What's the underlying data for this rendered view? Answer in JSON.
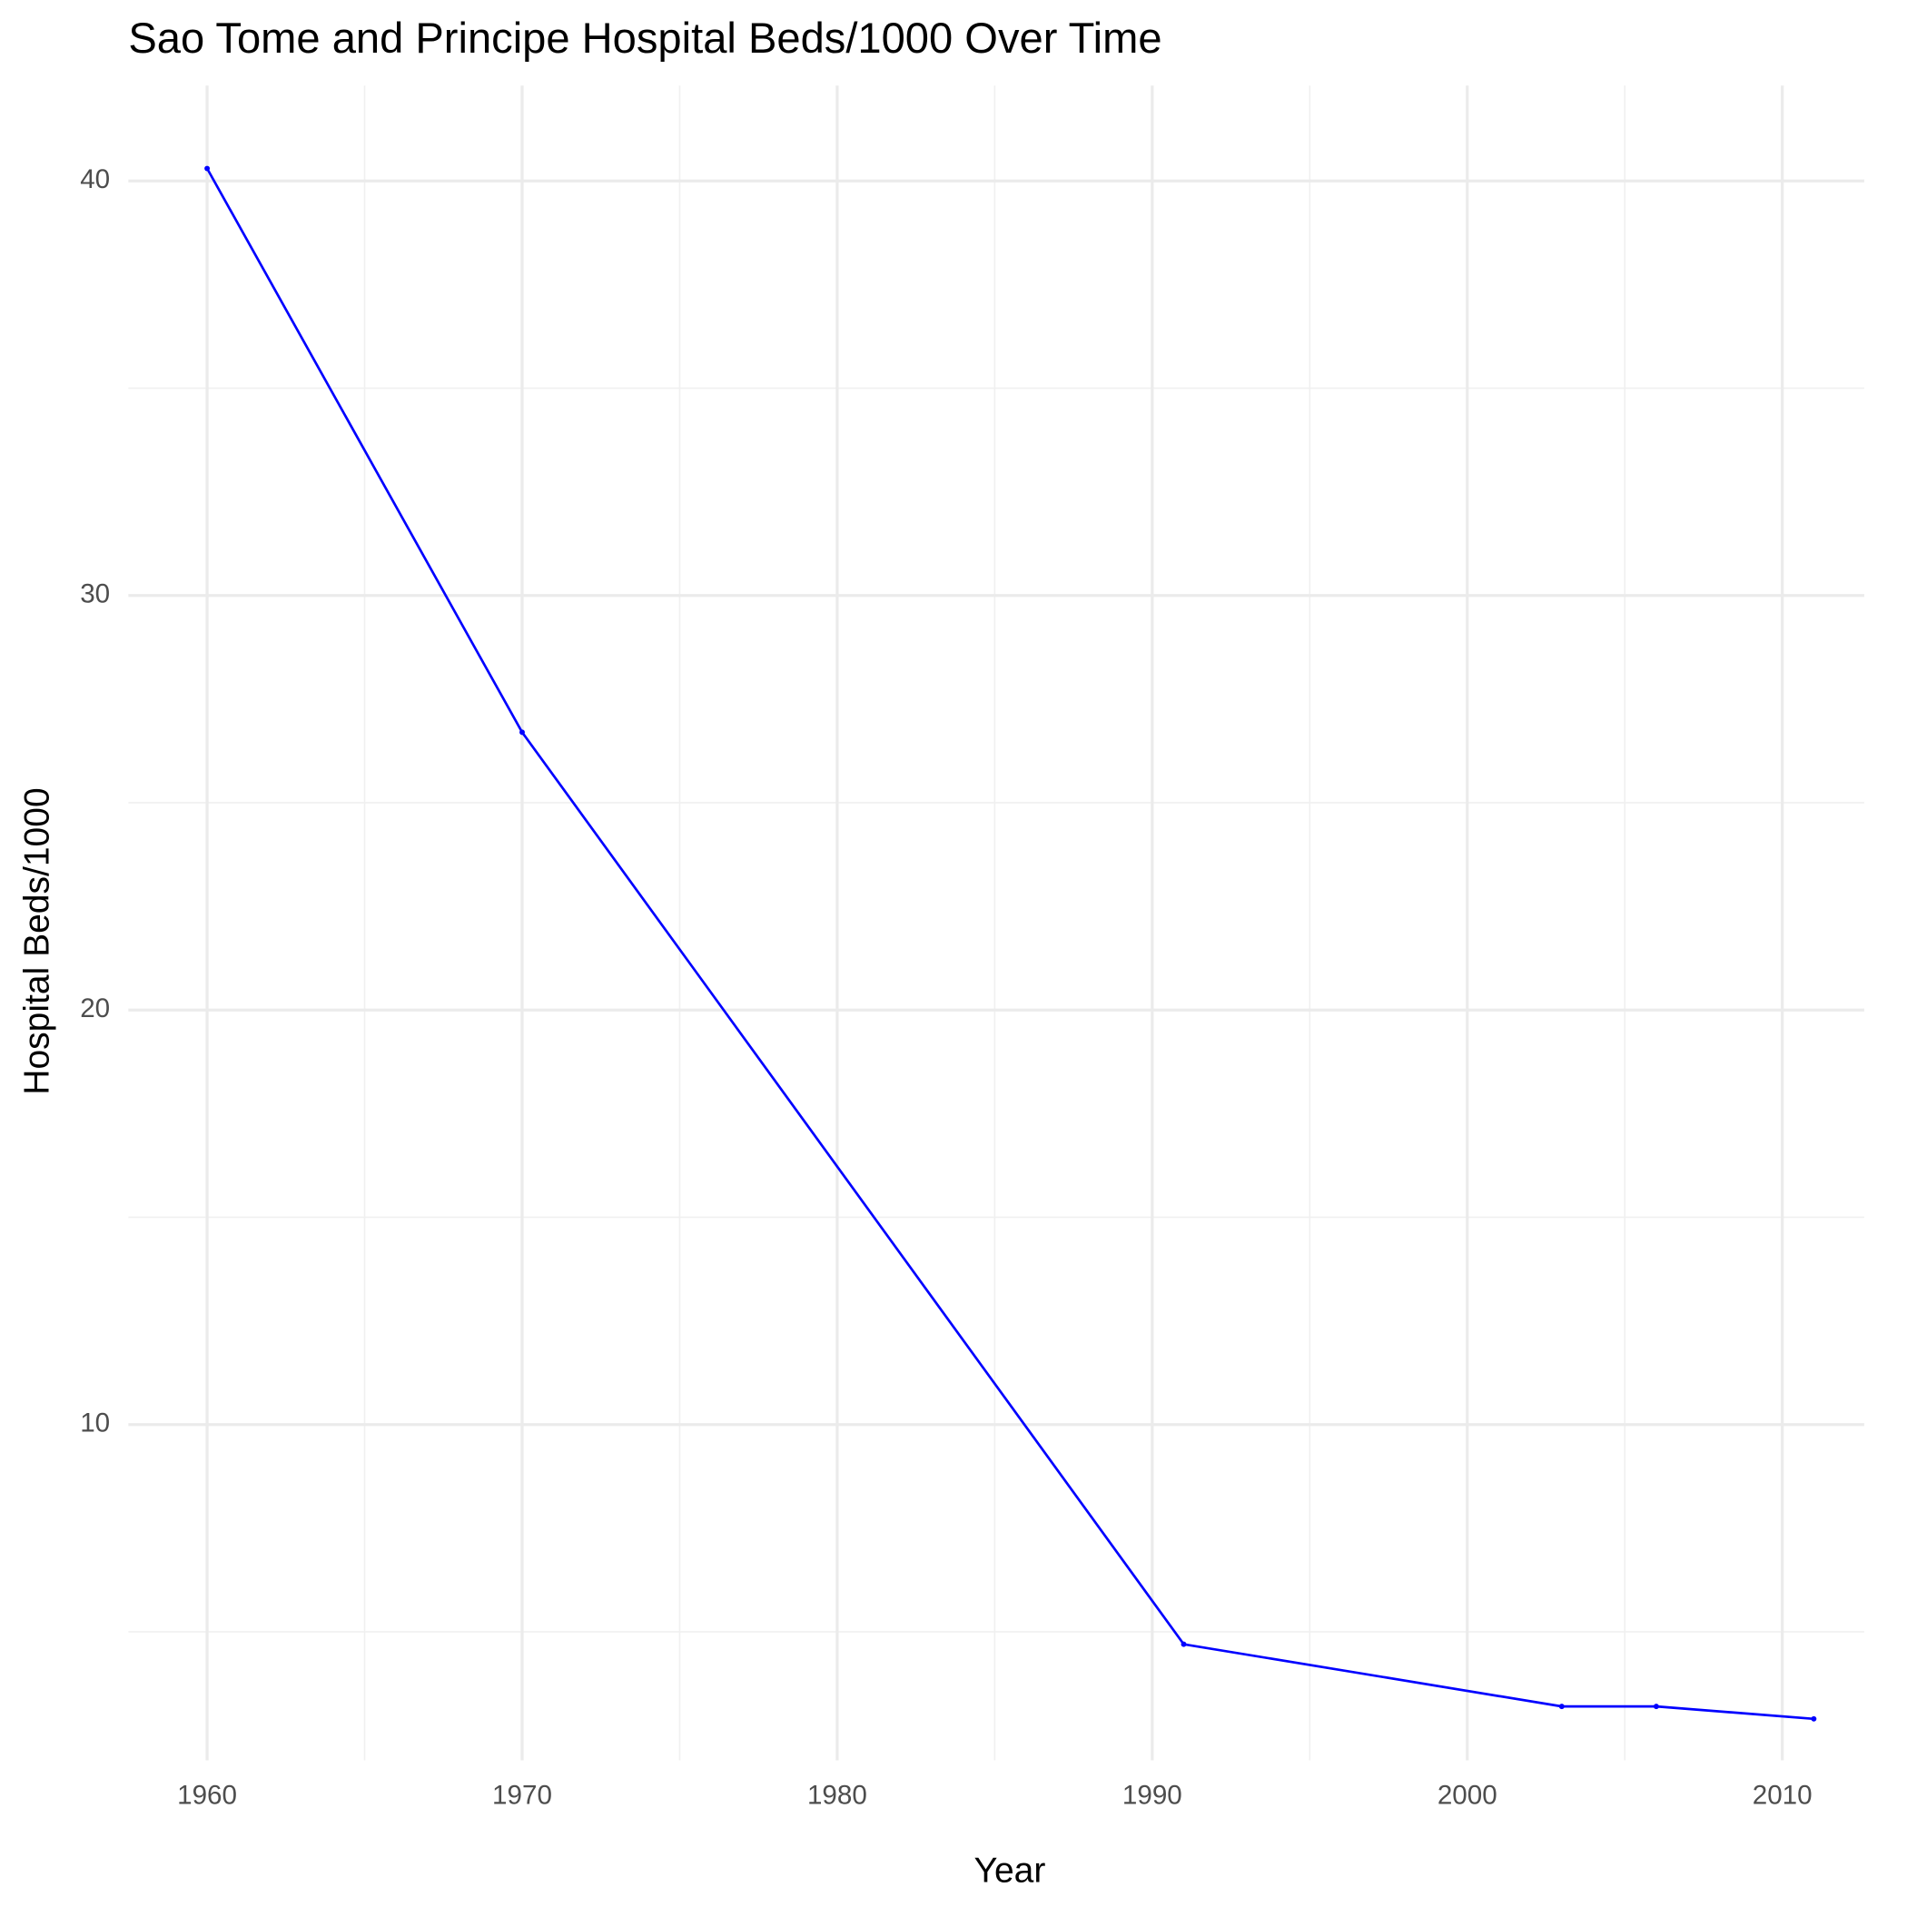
{
  "chart_data": {
    "type": "line",
    "title": "Sao Tome and Principe Hospital Beds/1000 Over Time",
    "x_label": "Year",
    "y_label": "Hospital Beds/1000",
    "x": [
      1960,
      1970,
      1991,
      2003,
      2006,
      2011
    ],
    "series": [
      {
        "name": "Hospital Beds/1000",
        "color": "#0000ff",
        "values": [
          40.3,
          26.7,
          4.7,
          3.2,
          3.2,
          2.9
        ]
      }
    ],
    "xlim": [
      1957.5,
      2012.6
    ],
    "xticks": [
      1960,
      1970,
      1980,
      1990,
      2000,
      2010
    ],
    "ylim": [
      1.9,
      42.3
    ],
    "yticks": [
      10,
      20,
      30,
      40
    ],
    "grid": true
  }
}
